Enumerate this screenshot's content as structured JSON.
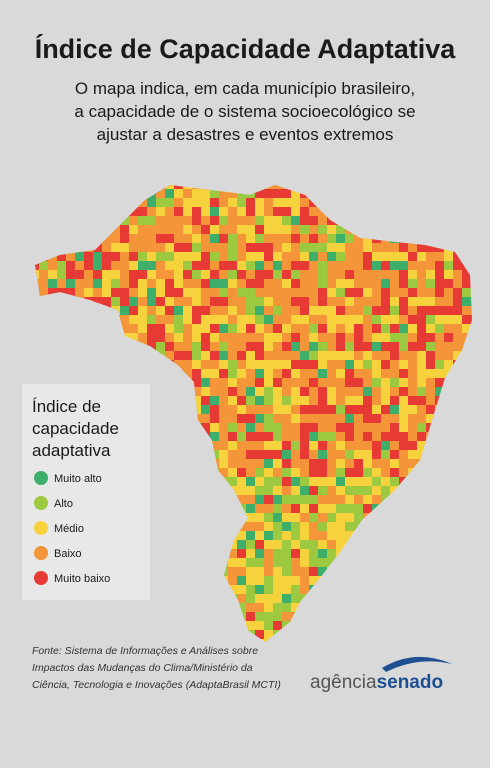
{
  "header": {
    "title": "Índice de Capacidade Adaptativa",
    "subtitle_lines": [
      "O mapa indica, em cada município brasileiro,",
      "a capacidade de o sistema socioecológico se",
      "ajustar a desastres e eventos extremos"
    ]
  },
  "legend": {
    "title_lines": [
      "Índice de",
      "capacidade",
      "adaptativa"
    ],
    "items": [
      {
        "label": "Muito alto",
        "color": "#3daf6a"
      },
      {
        "label": "Alto",
        "color": "#9cc940"
      },
      {
        "label": "Médio",
        "color": "#f6d33c"
      },
      {
        "label": "Baixo",
        "color": "#f39538"
      },
      {
        "label": "Muito baixo",
        "color": "#e83a35"
      }
    ]
  },
  "source": {
    "lines": [
      "Fonte: Sistema de Informações e Análises sobre",
      "Impactos das Mudanças do Clima/Ministério da",
      "Ciência, Tecnologia e Inovações (AdaptaBrasil MCTI)"
    ]
  },
  "logo": {
    "part1": "agência",
    "part2": "senado"
  }
}
